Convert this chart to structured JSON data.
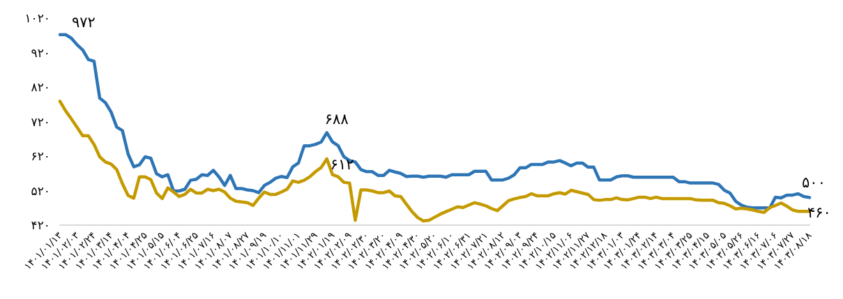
{
  "chart_data": {
    "type": "line",
    "categories": [
      "۱۴۰۱/۰۱/۱۳",
      null,
      null,
      "۱۴۰۱/۰۲/۰۳",
      null,
      null,
      "۱۴۰۱/۰۲/۲۴",
      null,
      null,
      "۱۴۰۱/۰۳/۱۴",
      null,
      null,
      "۱۴۰۱/۰۴/۰۴",
      null,
      null,
      "۱۴۰۱/۰۴/۲۵",
      null,
      null,
      "۱۴۰۱/۰۵/۱۵",
      null,
      null,
      "۱۴۰۱/۰۶/۰۴",
      null,
      null,
      "۱۴۰۱/۰۶/۲۵",
      null,
      null,
      "۱۴۰۱/۰۷/۱۶",
      null,
      null,
      "۱۴۰۱/۰۸/۰۷",
      null,
      null,
      "۱۴۰۱/۰۸/۲۷",
      null,
      null,
      "۱۴۰۱/۰۹/۱۹",
      null,
      null,
      "۱۴۰۱/۱۰/۱۰",
      null,
      null,
      "۱۴۰۱/۱۱/۰۱",
      null,
      null,
      "۱۴۰۱/۱۱/۲۹",
      null,
      null,
      "۱۴۰۲/۰۱/۱۹",
      null,
      null,
      "۱۴۰۲/۰۲/۰۹",
      null,
      null,
      "۱۴۰۲/۰۲/۳۰",
      null,
      null,
      "۱۴۰۲/۰۳/۲۰",
      null,
      null,
      "۱۴۰۲/۰۴/۰۹",
      null,
      null,
      "۱۴۰۲/۰۴/۳۰",
      null,
      null,
      "۱۴۰۲/۰۵/۲۰",
      null,
      null,
      "۱۴۰۲/۰۶/۱۰",
      null,
      null,
      "۱۴۰۲/۰۶/۳۱",
      null,
      null,
      "۱۴۰۲/۰۷/۲۱",
      null,
      null,
      "۱۴۰۲/۰۸/۱۲",
      null,
      null,
      "۱۴۰۲/۰۹/۰۳",
      null,
      null,
      "۱۴۰۲/۰۹/۲۴",
      null,
      null,
      "۱۴۰۲/۱۰/۱۵",
      null,
      null,
      "۱۴۰۲/۱۱/۰۶",
      null,
      null,
      "۱۴۰۲/۱۱/۲۷",
      null,
      null,
      "۱۴۰۲/۱۲/۱۸",
      null,
      null,
      "۱۴۰۳/۰۱/۰۳",
      null,
      null,
      "۱۴۰۳/۰۱/۲۴",
      null,
      null,
      "۱۴۰۳/۰۲/۱۴",
      null,
      null,
      "۱۴۰۳/۰۳/۰۴",
      null,
      null,
      "۱۴۰۳/۰۳/۲۵",
      null,
      null,
      "۱۴۰۳/۰۴/۱۵",
      null,
      null,
      "۱۴۰۳/۰۵/۰۵",
      null,
      null,
      "۱۴۰۳/۰۵/۲۶",
      null,
      null,
      "۱۴۰۳/۰۶/۱۶",
      null,
      null,
      "۱۴۰۳/۰۷/۰۶",
      null,
      null,
      "۱۴۰۳/۰۷/۲۷",
      null,
      null,
      "۱۴۰۳/۰۸/۱۸"
    ],
    "series": [
      {
        "color": "#2e75b6",
        "values": [
          972,
          972,
          962,
          943,
          928,
          900,
          895,
          788,
          775,
          748,
          704,
          694,
          626,
          589,
          595,
          618,
          614,
          569,
          560,
          566,
          519,
          519,
          524,
          550,
          553,
          566,
          564,
          579,
          560,
          535,
          564,
          526,
          526,
          522,
          520,
          514,
          535,
          544,
          556,
          561,
          558,
          589,
          600,
          650,
          650,
          654,
          661,
          688,
          661,
          650,
          618,
          607,
          603,
          581,
          575,
          575,
          564,
          564,
          579,
          574,
          570,
          561,
          562,
          562,
          559,
          562,
          562,
          562,
          559,
          566,
          566,
          566,
          566,
          576,
          576,
          576,
          551,
          551,
          551,
          556,
          566,
          586,
          586,
          596,
          596,
          596,
          603,
          603,
          607,
          600,
          592,
          600,
          600,
          588,
          588,
          551,
          551,
          551,
          560,
          563,
          563,
          559,
          559,
          559,
          559,
          559,
          559,
          559,
          559,
          546,
          546,
          542,
          542,
          542,
          542,
          542,
          538,
          521,
          513,
          489,
          478,
          472,
          470,
          470,
          470,
          470,
          501,
          499,
          507,
          507,
          511,
          503,
          500
        ],
        "value_labels": [
          "۹۷۲",
          null,
          null,
          null,
          null,
          null,
          null,
          null,
          null,
          null,
          null,
          null,
          null,
          null,
          null,
          null,
          null,
          null,
          null,
          null,
          null,
          null,
          null,
          null,
          null,
          null,
          null,
          null,
          null,
          null,
          null,
          null,
          null,
          null,
          null,
          null,
          null,
          null,
          null,
          null,
          null,
          null,
          null,
          null,
          null,
          null,
          null,
          "۶۸۸",
          null,
          null,
          null,
          null,
          null,
          null,
          null,
          null,
          null,
          null,
          null,
          null,
          null,
          null,
          null,
          null,
          null,
          null,
          null,
          null,
          null,
          null,
          null,
          null,
          null,
          null,
          null,
          null,
          null,
          null,
          null,
          null,
          null,
          null,
          null,
          null,
          null,
          null,
          null,
          null,
          null,
          null,
          null,
          null,
          null,
          null,
          null,
          null,
          null,
          null,
          null,
          null,
          null,
          null,
          null,
          null,
          null,
          null,
          null,
          null,
          null,
          null,
          null,
          null,
          null,
          null,
          null,
          null,
          null,
          null,
          null,
          null,
          null,
          null,
          null,
          null,
          null,
          null,
          null,
          null,
          null,
          null,
          null,
          null,
          "۵۰۰"
        ]
      },
      {
        "color": "#c49a00",
        "values": [
          779,
          751,
          728,
          704,
          679,
          679,
          654,
          618,
          603,
          597,
          581,
          540,
          506,
          498,
          560,
          560,
          552,
          513,
          497,
          528,
          516,
          503,
          509,
          524,
          513,
          513,
          524,
          520,
          524,
          516,
          498,
          489,
          487,
          485,
          477,
          498,
          516,
          509,
          509,
          516,
          524,
          548,
          544,
          550,
          560,
          575,
          587,
          612,
          566,
          560,
          544,
          542,
          434,
          522,
          522,
          519,
          514,
          514,
          519,
          505,
          503,
          481,
          459,
          442,
          432,
          434,
          443,
          452,
          459,
          466,
          473,
          471,
          478,
          485,
          481,
          476,
          468,
          462,
          476,
          491,
          496,
          500,
          503,
          511,
          505,
          505,
          505,
          511,
          514,
          510,
          521,
          517,
          513,
          509,
          494,
          492,
          494,
          494,
          499,
          494,
          493,
          497,
          501,
          501,
          497,
          501,
          497,
          497,
          497,
          497,
          497,
          497,
          493,
          492,
          492,
          492,
          485,
          483,
          476,
          467,
          469,
          467,
          464,
          460,
          457,
          471,
          477,
          484,
          475,
          464,
          460,
          460,
          460
        ],
        "value_labels": [
          null,
          null,
          null,
          null,
          null,
          null,
          null,
          null,
          null,
          null,
          null,
          null,
          null,
          null,
          null,
          null,
          null,
          null,
          null,
          null,
          null,
          null,
          null,
          null,
          null,
          null,
          null,
          null,
          null,
          null,
          null,
          null,
          null,
          null,
          null,
          null,
          null,
          null,
          null,
          null,
          null,
          null,
          null,
          null,
          null,
          null,
          null,
          "۶۱۲",
          null,
          null,
          null,
          null,
          null,
          null,
          null,
          null,
          null,
          null,
          null,
          null,
          null,
          null,
          null,
          null,
          null,
          null,
          null,
          null,
          null,
          null,
          null,
          null,
          null,
          null,
          null,
          null,
          null,
          null,
          null,
          null,
          null,
          null,
          null,
          null,
          null,
          null,
          null,
          null,
          null,
          null,
          null,
          null,
          null,
          null,
          null,
          null,
          null,
          null,
          null,
          null,
          null,
          null,
          null,
          null,
          null,
          null,
          null,
          null,
          null,
          null,
          null,
          null,
          null,
          null,
          null,
          null,
          null,
          null,
          null,
          null,
          null,
          null,
          null,
          null,
          null,
          null,
          null,
          null,
          null,
          null,
          null,
          null,
          "۴۶۰"
        ]
      }
    ],
    "ylim": [
      420,
      1020
    ],
    "yticks": [
      {
        "value": 420,
        "label": "۴۲۰"
      },
      {
        "value": 520,
        "label": "۵۲۰"
      },
      {
        "value": 620,
        "label": "۶۲۰"
      },
      {
        "value": 720,
        "label": "۷۲۰"
      },
      {
        "value": 820,
        "label": "۸۲۰"
      },
      {
        "value": 920,
        "label": "۹۲۰"
      },
      {
        "value": 1020,
        "label": "۱۰۲۰"
      }
    ]
  }
}
